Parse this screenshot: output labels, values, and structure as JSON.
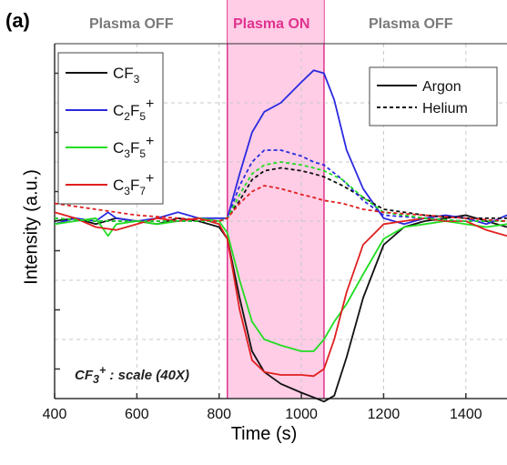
{
  "panel_label": "(a)",
  "regions": {
    "off_left": "Plasma OFF",
    "on": "Plasma ON",
    "off_right": "Plasma OFF"
  },
  "annotation_prefix": "CF",
  "annotation_sub": "3",
  "annotation_sup": "+",
  "annotation_suffix": " : scale (40X)",
  "colors": {
    "CF3": "#111111",
    "C2F5": "#2a2ae0",
    "C3F5": "#22dd22",
    "C3F7": "#e01f1f",
    "plasma_on_fill": "#ffc4e2",
    "plasma_on_edge": "#e0338f"
  },
  "chart_data": {
    "type": "line",
    "xlabel": "Time (s)",
    "ylabel": "Intensity (a.u.)",
    "xlim": [
      400,
      1500
    ],
    "ylim": [
      -3.0,
      3.0
    ],
    "xticks": [
      "400",
      "600",
      "800",
      "1000",
      "1200",
      "1400"
    ],
    "grid": true,
    "y_tick_labels_shown": false,
    "shaded_region": {
      "label": "Plasma ON",
      "x": [
        820,
        1055
      ]
    },
    "legend_species": {
      "placement": "top-left",
      "entries": [
        {
          "key": "CF3",
          "base": "CF",
          "sub": "3",
          "sup": ""
        },
        {
          "key": "C2F5",
          "base": "C",
          "sub": "2",
          "mid": "F",
          "sub2": "5",
          "sup": "+"
        },
        {
          "key": "C3F5",
          "base": "C",
          "sub": "3",
          "mid": "F",
          "sub2": "5",
          "sup": "+"
        },
        {
          "key": "C3F7",
          "base": "C",
          "sub": "3",
          "mid": "F",
          "sub2": "7",
          "sup": "+"
        }
      ]
    },
    "legend_gas": {
      "placement": "top-right",
      "entries": [
        {
          "name": "Argon",
          "style": "solid"
        },
        {
          "name": "Helium",
          "style": "dashed"
        }
      ]
    },
    "series": [
      {
        "key": "CF3",
        "gas": "Argon",
        "style": "solid",
        "x": [
          400,
          450,
          500,
          550,
          600,
          650,
          700,
          750,
          800,
          820,
          850,
          880,
          910,
          950,
          1000,
          1030,
          1055,
          1080,
          1110,
          1150,
          1200,
          1250,
          1300,
          1350,
          1400,
          1450,
          1500
        ],
        "y": [
          0.0,
          0.05,
          -0.05,
          0.05,
          0.0,
          -0.05,
          0.05,
          0.0,
          -0.1,
          -0.3,
          -1.3,
          -2.2,
          -2.55,
          -2.75,
          -2.9,
          -2.98,
          -3.05,
          -2.95,
          -2.3,
          -1.3,
          -0.4,
          -0.1,
          0.0,
          0.05,
          0.1,
          0.0,
          -0.1
        ]
      },
      {
        "key": "C2F5",
        "gas": "Argon",
        "style": "solid",
        "x": [
          400,
          450,
          500,
          530,
          550,
          600,
          650,
          700,
          750,
          800,
          820,
          850,
          880,
          910,
          950,
          1000,
          1030,
          1055,
          1080,
          1110,
          1150,
          1200,
          1250,
          1300,
          1350,
          1400,
          1450,
          1500
        ],
        "y": [
          -0.05,
          0.05,
          0.0,
          0.15,
          0.05,
          0.0,
          0.05,
          0.15,
          0.05,
          0.05,
          0.05,
          0.8,
          1.5,
          1.85,
          2.0,
          2.35,
          2.55,
          2.5,
          2.05,
          1.2,
          0.55,
          0.05,
          -0.05,
          0.05,
          0.1,
          0.05,
          -0.05,
          0.1
        ]
      },
      {
        "key": "C3F5",
        "gas": "Argon",
        "style": "solid",
        "x": [
          400,
          450,
          500,
          530,
          550,
          600,
          650,
          700,
          750,
          800,
          820,
          850,
          880,
          910,
          950,
          1000,
          1030,
          1055,
          1080,
          1110,
          1150,
          1200,
          1250,
          1300,
          1350,
          1400,
          1450,
          1500
        ],
        "y": [
          -0.05,
          0.0,
          0.05,
          -0.25,
          -0.05,
          0.0,
          -0.05,
          0.0,
          0.05,
          0.0,
          -0.2,
          -1.0,
          -1.7,
          -2.0,
          -2.1,
          -2.2,
          -2.2,
          -2.0,
          -1.7,
          -1.4,
          -0.9,
          -0.3,
          -0.1,
          -0.05,
          0.0,
          -0.05,
          -0.1,
          -0.05
        ]
      },
      {
        "key": "C3F7",
        "gas": "Argon",
        "style": "solid",
        "x": [
          400,
          450,
          500,
          550,
          600,
          650,
          700,
          750,
          800,
          820,
          850,
          880,
          910,
          950,
          1000,
          1030,
          1055,
          1080,
          1110,
          1150,
          1200,
          1250,
          1300,
          1350,
          1400,
          1450,
          1500
        ],
        "y": [
          0.15,
          0.05,
          -0.1,
          -0.15,
          -0.05,
          0.05,
          0.0,
          0.05,
          -0.05,
          -0.3,
          -1.5,
          -2.35,
          -2.55,
          -2.6,
          -2.6,
          -2.62,
          -2.5,
          -2.0,
          -1.2,
          -0.4,
          -0.05,
          0.0,
          0.05,
          0.0,
          0.0,
          -0.15,
          -0.25
        ]
      },
      {
        "key": "CF3",
        "gas": "Helium",
        "style": "dashed",
        "x": [
          400,
          500,
          600,
          700,
          800,
          820,
          850,
          880,
          910,
          950,
          1000,
          1030,
          1055,
          1100,
          1150,
          1200,
          1300,
          1400,
          1500
        ],
        "y": [
          0.05,
          0.0,
          0.0,
          0.0,
          0.0,
          0.05,
          0.35,
          0.7,
          0.85,
          0.9,
          0.85,
          0.8,
          0.75,
          0.6,
          0.4,
          0.2,
          0.1,
          0.05,
          0.05
        ]
      },
      {
        "key": "C2F5",
        "gas": "Helium",
        "style": "dashed",
        "x": [
          400,
          500,
          600,
          700,
          800,
          820,
          850,
          880,
          910,
          950,
          1000,
          1030,
          1055,
          1100,
          1150,
          1200,
          1300,
          1400,
          1500
        ],
        "y": [
          0.05,
          0.0,
          0.0,
          0.0,
          0.0,
          0.05,
          0.6,
          1.0,
          1.2,
          1.2,
          1.1,
          1.0,
          0.95,
          0.7,
          0.35,
          0.1,
          0.05,
          0.0,
          0.0
        ]
      },
      {
        "key": "C3F5",
        "gas": "Helium",
        "style": "dashed",
        "x": [
          400,
          500,
          600,
          700,
          800,
          820,
          850,
          880,
          910,
          950,
          1000,
          1030,
          1055,
          1100,
          1150,
          1200,
          1300,
          1400,
          1500
        ],
        "y": [
          0.05,
          0.0,
          0.0,
          0.0,
          0.0,
          0.05,
          0.45,
          0.8,
          0.95,
          1.0,
          0.95,
          0.9,
          0.85,
          0.7,
          0.4,
          0.15,
          0.05,
          0.0,
          0.0
        ]
      },
      {
        "key": "C3F7",
        "gas": "Helium",
        "style": "dashed",
        "x": [
          400,
          500,
          600,
          700,
          800,
          820,
          850,
          880,
          910,
          950,
          1000,
          1030,
          1055,
          1100,
          1150,
          1200,
          1300,
          1400,
          1500
        ],
        "y": [
          0.3,
          0.2,
          0.1,
          0.05,
          0.0,
          0.05,
          0.3,
          0.5,
          0.6,
          0.55,
          0.45,
          0.4,
          0.35,
          0.3,
          0.2,
          0.15,
          0.1,
          0.05,
          0.0
        ]
      }
    ]
  }
}
